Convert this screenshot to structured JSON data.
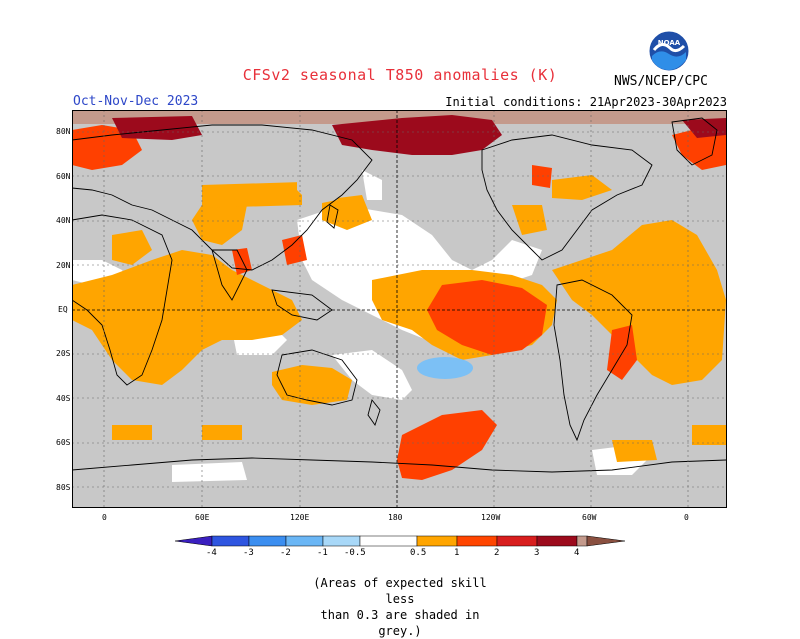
{
  "header": {
    "title": "CFSv2 seasonal T850 anomalies (K)",
    "season": "Oct-Nov-Dec 2023",
    "initial_conditions": "Initial conditions: 21Apr2023-30Apr2023",
    "agency": "NWS/NCEP/CPC",
    "logo_text": "NOAA"
  },
  "map": {
    "lat_labels": [
      "80N",
      "60N",
      "40N",
      "20N",
      "EQ",
      "20S",
      "40S",
      "60S",
      "80S"
    ],
    "lon_labels": [
      "0",
      "60E",
      "120E",
      "180",
      "120W",
      "60W",
      "0"
    ]
  },
  "colorbar": {
    "labels": [
      "-4",
      "-3",
      "-2",
      "-1",
      "-0.5",
      "0.5",
      "1",
      "2",
      "3",
      "4"
    ],
    "colors": [
      "#3a1fbf",
      "#2e55e0",
      "#3b8ef0",
      "#6ab6f5",
      "#a8d8f8",
      "#ffffff",
      "#ffa500",
      "#ff4500",
      "#d81e1e",
      "#9c0a1c",
      "#c49a8c",
      "#8a5040"
    ]
  },
  "note": {
    "line1": "(Areas of expected skill less",
    "line2": "than 0.3 are shaded in grey.)"
  },
  "palette": {
    "grey": "#c8c8c8",
    "orange": "#ffa500",
    "red": "#ff4000",
    "darkred": "#9c0a1c",
    "brown": "#c49a8c",
    "lightblue": "#7cc0f5",
    "white": "#ffffff"
  }
}
